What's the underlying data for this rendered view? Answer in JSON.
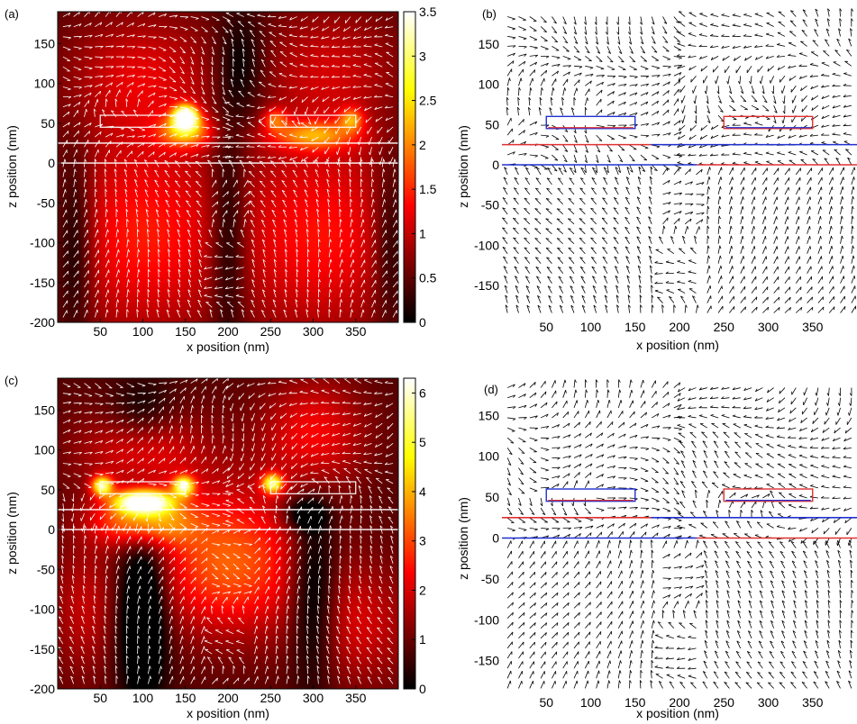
{
  "chart_data": [
    {
      "panel": "(a)",
      "type": "heatmap",
      "style": "field-map",
      "xlabel": "x position (nm)",
      "ylabel": "z position (nm)",
      "xlim": [
        0,
        400
      ],
      "ylim": [
        -200,
        190
      ],
      "xticks": [
        50,
        100,
        150,
        200,
        250,
        300,
        350
      ],
      "yticks": [
        -200,
        -150,
        -100,
        -50,
        0,
        50,
        100,
        150
      ],
      "colorbar": {
        "min": 0,
        "max": 3.5,
        "ticks": [
          0,
          0.5,
          1,
          1.5,
          2,
          2.5,
          3,
          3.5
        ],
        "colormap": "hot"
      },
      "hotspots": [
        {
          "x": 150,
          "z": 58,
          "strength": 3.4,
          "rx": 14,
          "rz": 14
        },
        {
          "x": 150,
          "z": 40,
          "strength": 1.5,
          "rx": 30,
          "rz": 20
        },
        {
          "x": 300,
          "z": 35,
          "strength": 1.3,
          "rx": 50,
          "rz": 18
        },
        {
          "x": 345,
          "z": 55,
          "strength": 1.2,
          "rx": 14,
          "rz": 14
        },
        {
          "x": 255,
          "z": 55,
          "strength": 1.0,
          "rx": 14,
          "rz": 14
        },
        {
          "x": 100,
          "z": -90,
          "strength": 1.0,
          "rx": 100,
          "rz": 130
        },
        {
          "x": 310,
          "z": -90,
          "strength": 0.95,
          "rx": 100,
          "rz": 130
        },
        {
          "x": 100,
          "z": 110,
          "strength": 0.7,
          "rx": 90,
          "rz": 80
        },
        {
          "x": 320,
          "z": 120,
          "strength": 0.6,
          "rx": 80,
          "rz": 80
        },
        {
          "x": 20,
          "z": -100,
          "strength": -0.7,
          "rx": 22,
          "rz": 110
        },
        {
          "x": 200,
          "z": -90,
          "strength": -0.8,
          "rx": 22,
          "rz": 130
        },
        {
          "x": 390,
          "z": -100,
          "strength": -0.6,
          "rx": 20,
          "rz": 100
        },
        {
          "x": 215,
          "z": 120,
          "strength": -0.6,
          "rx": 30,
          "rz": 70
        }
      ],
      "structures": {
        "bars": [
          {
            "x0": 50,
            "x1": 150,
            "z0": 45,
            "z1": 60
          },
          {
            "x0": 250,
            "x1": 350,
            "z0": 45,
            "z1": 60
          }
        ],
        "interfaces_z": [
          25,
          0
        ]
      }
    },
    {
      "panel": "(b)",
      "type": "scatter",
      "style": "vector-field",
      "xlabel": "x position (nm)",
      "ylabel": "z position (nm)",
      "xlim": [
        0,
        400
      ],
      "ylim": [
        -190,
        190
      ],
      "xticks": [
        50,
        100,
        150,
        200,
        250,
        300,
        350
      ],
      "yticks": [
        -150,
        -100,
        -50,
        0,
        50,
        100,
        150
      ],
      "structures": {
        "bars": [
          {
            "x0": 50,
            "x1": 150,
            "z0": 45,
            "z1": 60
          },
          {
            "x0": 250,
            "x1": 350,
            "z0": 45,
            "z1": 60
          }
        ],
        "interfaces_z": [
          25,
          0
        ],
        "colors": {
          "positive": "#e03030",
          "negative": "#2030d0"
        }
      }
    },
    {
      "panel": "(c)",
      "type": "heatmap",
      "style": "field-map",
      "xlabel": "x position (nm)",
      "ylabel": "z position (nm)",
      "xlim": [
        0,
        400
      ],
      "ylim": [
        -200,
        190
      ],
      "xticks": [
        50,
        100,
        150,
        200,
        250,
        300,
        350
      ],
      "yticks": [
        -200,
        -150,
        -100,
        -50,
        0,
        50,
        100,
        150
      ],
      "colorbar": {
        "min": 0,
        "max": 6.3,
        "ticks": [
          0,
          1,
          2,
          3,
          4,
          5,
          6
        ],
        "colormap": "hot"
      },
      "hotspots": [
        {
          "x": 100,
          "z": 35,
          "strength": 5.8,
          "rx": 32,
          "rz": 14
        },
        {
          "x": 52,
          "z": 55,
          "strength": 4.5,
          "rx": 12,
          "rz": 12
        },
        {
          "x": 148,
          "z": 55,
          "strength": 4.5,
          "rx": 12,
          "rz": 12
        },
        {
          "x": 252,
          "z": 58,
          "strength": 4.2,
          "rx": 12,
          "rz": 12
        },
        {
          "x": 100,
          "z": 10,
          "strength": 3.0,
          "rx": 55,
          "rz": 30
        },
        {
          "x": 200,
          "z": -40,
          "strength": 2.5,
          "rx": 90,
          "rz": 90
        },
        {
          "x": 100,
          "z": 100,
          "strength": 1.4,
          "rx": 80,
          "rz": 60
        },
        {
          "x": 300,
          "z": 120,
          "strength": 1.6,
          "rx": 60,
          "rz": 70
        },
        {
          "x": 350,
          "z": -120,
          "strength": 1.2,
          "rx": 70,
          "rz": 80
        },
        {
          "x": 30,
          "z": -100,
          "strength": 1.0,
          "rx": 40,
          "rz": 90
        },
        {
          "x": 100,
          "z": -100,
          "strength": -2.2,
          "rx": 28,
          "rz": 110
        },
        {
          "x": 300,
          "z": -80,
          "strength": -1.8,
          "rx": 28,
          "rz": 110
        },
        {
          "x": 100,
          "z": 150,
          "strength": -1.0,
          "rx": 40,
          "rz": 40
        },
        {
          "x": 290,
          "z": 20,
          "strength": -1.5,
          "rx": 25,
          "rz": 20
        }
      ],
      "structures": {
        "bars": [
          {
            "x0": 50,
            "x1": 150,
            "z0": 45,
            "z1": 60
          },
          {
            "x0": 250,
            "x1": 350,
            "z0": 45,
            "z1": 60
          }
        ],
        "interfaces_z": [
          25,
          0
        ]
      }
    },
    {
      "panel": "(d)",
      "type": "scatter",
      "style": "vector-field",
      "xlabel": "x position (nm)",
      "ylabel": "z position (nm)",
      "xlim": [
        0,
        400
      ],
      "ylim": [
        -190,
        190
      ],
      "xticks": [
        50,
        100,
        150,
        200,
        250,
        300,
        350
      ],
      "yticks": [
        -150,
        -100,
        -50,
        0,
        50,
        100,
        150
      ],
      "structures": {
        "bars": [
          {
            "x0": 50,
            "x1": 150,
            "z0": 45,
            "z1": 60
          },
          {
            "x0": 250,
            "x1": 350,
            "z0": 45,
            "z1": 60
          }
        ],
        "interfaces_z": [
          25,
          0
        ],
        "colors": {
          "positive": "#e03030",
          "negative": "#2030d0"
        }
      }
    }
  ]
}
